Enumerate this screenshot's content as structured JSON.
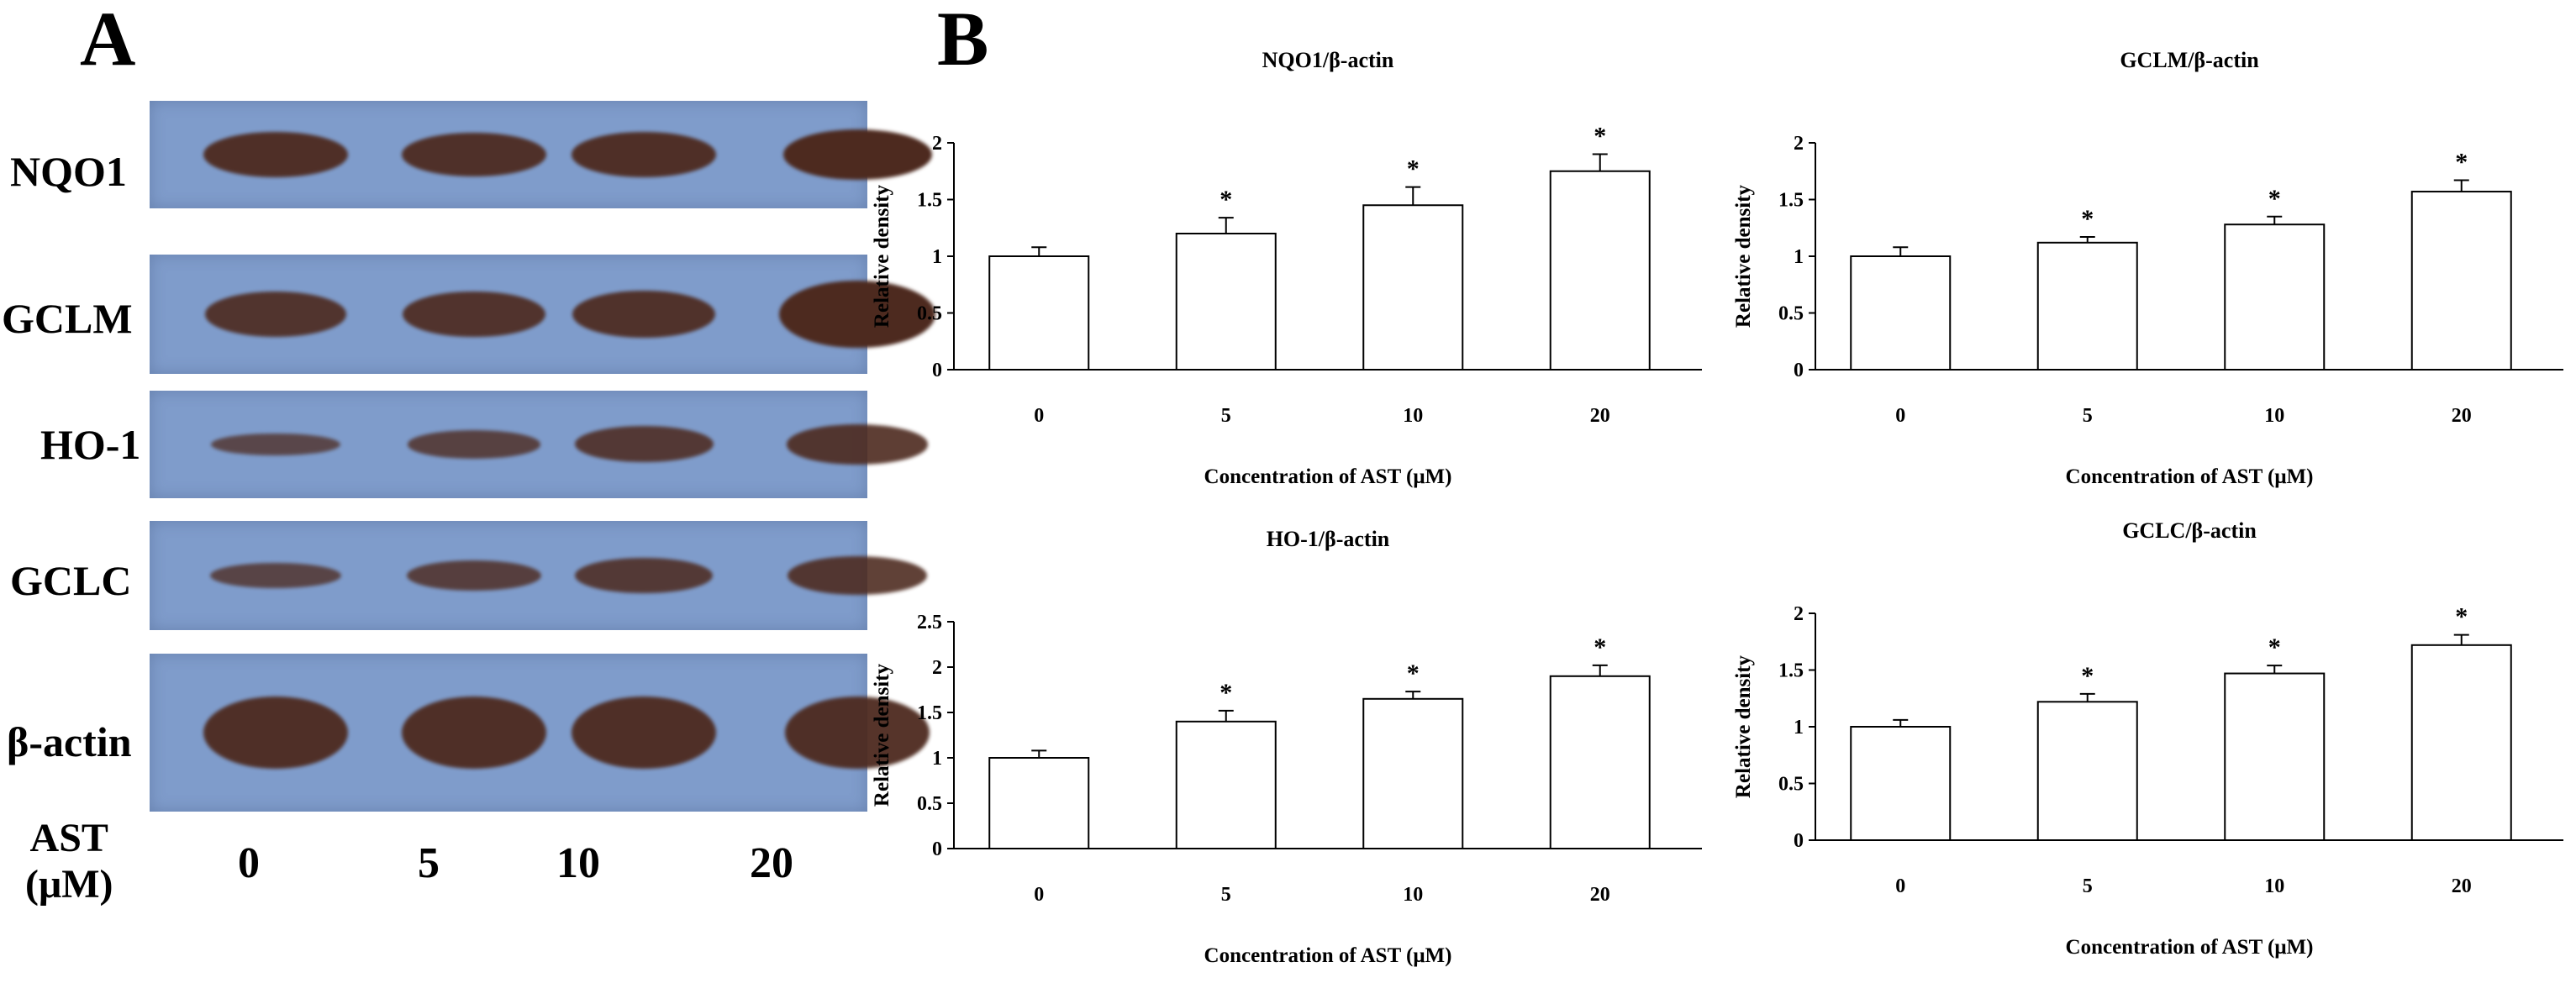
{
  "panel_a": {
    "letter": "A",
    "blots": [
      {
        "label": "NQO1",
        "bands": [
          1.0,
          0.98,
          1.0,
          1.12
        ]
      },
      {
        "label": "GCLM",
        "bands": [
          0.9,
          0.92,
          0.95,
          1.35
        ]
      },
      {
        "label": "HO-1",
        "bands": [
          0.5,
          0.62,
          0.8,
          0.88
        ]
      },
      {
        "label": "GCLC",
        "bands": [
          0.55,
          0.66,
          0.78,
          0.85
        ]
      },
      {
        "label": "β-actin",
        "bands": [
          1.0,
          1.0,
          1.0,
          1.0
        ]
      }
    ],
    "ast_label_line1": "AST",
    "ast_label_line2": "(μM)",
    "lanes": [
      "0",
      "5",
      "10",
      "20"
    ]
  },
  "panel_b": {
    "letter": "B"
  },
  "chart_data": [
    {
      "type": "bar",
      "title": "NQO1/β-actin",
      "xlabel": "Concentration of AST (μM)",
      "ylabel": "Relative density",
      "categories": [
        "0",
        "5",
        "10",
        "20"
      ],
      "values": [
        1.0,
        1.2,
        1.45,
        1.75
      ],
      "errors": [
        0.08,
        0.14,
        0.16,
        0.15
      ],
      "significant": [
        false,
        true,
        true,
        true
      ],
      "ylim": [
        0,
        2
      ],
      "yticks": [
        "0",
        "0.5",
        "1",
        "1.5",
        "2"
      ],
      "ytick_values": [
        0,
        0.5,
        1,
        1.5,
        2
      ],
      "marker": "*"
    },
    {
      "type": "bar",
      "title": "GCLM/β-actin",
      "xlabel": "Concentration of AST (μM)",
      "ylabel": "Relative density",
      "categories": [
        "0",
        "5",
        "10",
        "20"
      ],
      "values": [
        1.0,
        1.12,
        1.28,
        1.57
      ],
      "errors": [
        0.08,
        0.05,
        0.07,
        0.1
      ],
      "significant": [
        false,
        true,
        true,
        true
      ],
      "ylim": [
        0,
        2
      ],
      "yticks": [
        "0",
        "0.5",
        "1",
        "1.5",
        "2"
      ],
      "ytick_values": [
        0,
        0.5,
        1,
        1.5,
        2
      ],
      "marker": "*"
    },
    {
      "type": "bar",
      "title": "HO-1/β-actin",
      "xlabel": "Concentration of AST (μM)",
      "ylabel": "Relative density",
      "categories": [
        "0",
        "5",
        "10",
        "20"
      ],
      "values": [
        1.0,
        1.4,
        1.65,
        1.9
      ],
      "errors": [
        0.08,
        0.12,
        0.08,
        0.12
      ],
      "significant": [
        false,
        true,
        true,
        true
      ],
      "ylim": [
        0,
        2.5
      ],
      "yticks": [
        "0",
        "0.5",
        "1",
        "1.5",
        "2",
        "2.5"
      ],
      "ytick_values": [
        0,
        0.5,
        1,
        1.5,
        2,
        2.5
      ],
      "marker": "*"
    },
    {
      "type": "bar",
      "title": "GCLC/β-actin",
      "xlabel": "Concentration of AST (μM)",
      "ylabel": "Relative density",
      "categories": [
        "0",
        "5",
        "10",
        "20"
      ],
      "values": [
        1.0,
        1.22,
        1.47,
        1.72
      ],
      "errors": [
        0.06,
        0.07,
        0.07,
        0.09
      ],
      "significant": [
        false,
        true,
        true,
        true
      ],
      "ylim": [
        0,
        2
      ],
      "yticks": [
        "0",
        "0.5",
        "1",
        "1.5",
        "2"
      ],
      "ytick_values": [
        0,
        0.5,
        1,
        1.5,
        2
      ],
      "marker": "*"
    }
  ]
}
